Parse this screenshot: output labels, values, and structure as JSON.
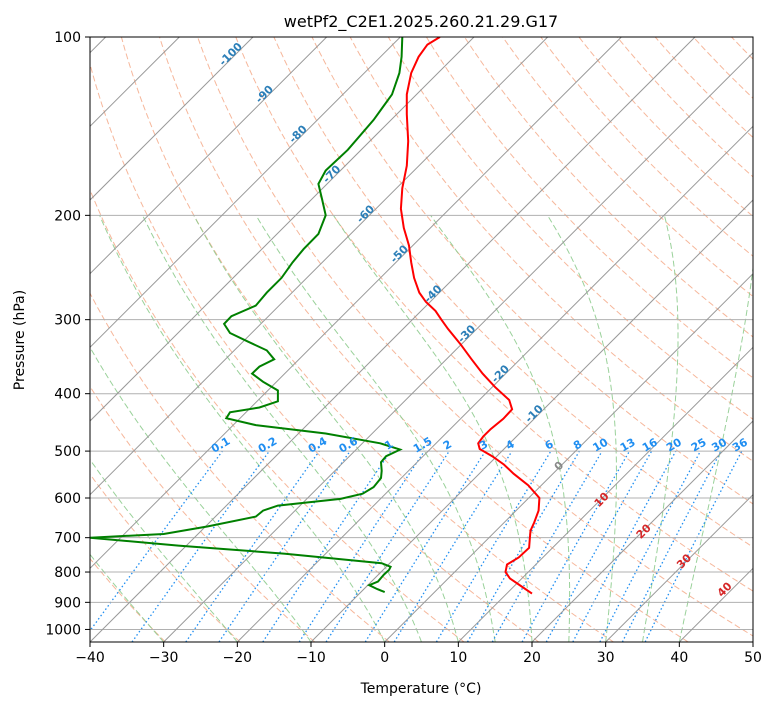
{
  "chart_data": {
    "type": "line",
    "title": "wetPf2_C2E1.2025.260.21.29.G17",
    "xlabel": "Temperature (°C)",
    "ylabel": "Pressure (hPa)",
    "xlim": [
      -40,
      50
    ],
    "ylim": [
      1050,
      100
    ],
    "y_scale": "log",
    "grid": true,
    "x_ticks": [
      "−40",
      "−30",
      "−20",
      "−10",
      "0",
      "10",
      "20",
      "30",
      "40",
      "50"
    ],
    "y_ticks": [
      {
        "p": 100,
        "label": "100"
      },
      {
        "p": 200,
        "label": "200"
      },
      {
        "p": 300,
        "label": "300"
      },
      {
        "p": 400,
        "label": "400"
      },
      {
        "p": 500,
        "label": "500"
      },
      {
        "p": 600,
        "label": "600"
      },
      {
        "p": 700,
        "label": "700"
      },
      {
        "p": 800,
        "label": "800"
      },
      {
        "p": 900,
        "label": "900"
      },
      {
        "p": 1000,
        "label": "1000"
      }
    ],
    "series": [
      {
        "color": "#ff0000",
        "points": [
          [
            20.0,
            870
          ],
          [
            18.4,
            843
          ],
          [
            17.0,
            820
          ],
          [
            16.4,
            800
          ],
          [
            16.6,
            777
          ],
          [
            18.2,
            756
          ],
          [
            19.6,
            728
          ],
          [
            19.7,
            703
          ],
          [
            19.8,
            681
          ],
          [
            20.3,
            660
          ],
          [
            20.9,
            630
          ],
          [
            21.0,
            600
          ],
          [
            19.5,
            571
          ],
          [
            17.5,
            546
          ],
          [
            16.2,
            527
          ],
          [
            14.6,
            510
          ],
          [
            12.9,
            496
          ],
          [
            12.7,
            485
          ],
          [
            13.4,
            472
          ],
          [
            14.4,
            459
          ],
          [
            16.1,
            441
          ],
          [
            17.3,
            425
          ],
          [
            16.9,
            410
          ],
          [
            15.0,
            390
          ],
          [
            13.3,
            370
          ],
          [
            11.8,
            350
          ],
          [
            10.3,
            330
          ],
          [
            8.6,
            311
          ],
          [
            7.7,
            300
          ],
          [
            6.9,
            290
          ],
          [
            5.6,
            280
          ],
          [
            4.7,
            270
          ],
          [
            4.0,
            255
          ],
          [
            3.6,
            240
          ],
          [
            3.3,
            225
          ],
          [
            2.6,
            210
          ],
          [
            2.2,
            195
          ],
          [
            2.4,
            180
          ],
          [
            3.0,
            165
          ],
          [
            3.2,
            150
          ],
          [
            3.0,
            135
          ],
          [
            3.0,
            125
          ],
          [
            3.6,
            115
          ],
          [
            4.6,
            108
          ],
          [
            5.8,
            103
          ],
          [
            7.5,
            100
          ]
        ]
      },
      {
        "color": "#008000",
        "points": [
          [
            0.0,
            865
          ],
          [
            -1.0,
            855
          ],
          [
            -2.1,
            842
          ],
          [
            -0.9,
            830
          ],
          [
            -0.1,
            808
          ],
          [
            0.6,
            793
          ],
          [
            0.8,
            784
          ],
          [
            -0.4,
            773
          ],
          [
            -13.5,
            745
          ],
          [
            -28.0,
            722
          ],
          [
            -40.0,
            700
          ],
          [
            -30.0,
            690
          ],
          [
            -24.0,
            670
          ],
          [
            -17.5,
            645
          ],
          [
            -16.5,
            630
          ],
          [
            -14.5,
            618
          ],
          [
            -6.0,
            602
          ],
          [
            -3.0,
            590
          ],
          [
            -1.5,
            575
          ],
          [
            -0.5,
            555
          ],
          [
            -0.4,
            540
          ],
          [
            -0.5,
            522
          ],
          [
            0.2,
            510
          ],
          [
            2.1,
            497
          ],
          [
            -0.6,
            485
          ],
          [
            -8.0,
            467
          ],
          [
            -17.5,
            452
          ],
          [
            -21.5,
            440
          ],
          [
            -21.0,
            430
          ],
          [
            -17.0,
            422
          ],
          [
            -14.5,
            412
          ],
          [
            -14.5,
            395
          ],
          [
            -16.5,
            382
          ],
          [
            -18.0,
            370
          ],
          [
            -17.0,
            360
          ],
          [
            -15.0,
            350
          ],
          [
            -16.0,
            338
          ],
          [
            -18.5,
            327
          ],
          [
            -21.0,
            316
          ],
          [
            -21.8,
            305
          ],
          [
            -20.8,
            296
          ],
          [
            -17.5,
            284
          ],
          [
            -16.0,
            270
          ],
          [
            -14.0,
            255
          ],
          [
            -12.5,
            240
          ],
          [
            -11.0,
            228
          ],
          [
            -9.0,
            215
          ],
          [
            -8.0,
            200
          ],
          [
            -8.5,
            188
          ],
          [
            -9.0,
            177
          ],
          [
            -8.0,
            168
          ],
          [
            -5.0,
            155
          ],
          [
            -1.5,
            138
          ],
          [
            1.0,
            125
          ],
          [
            2.0,
            115
          ],
          [
            2.3,
            108
          ],
          [
            2.4,
            100
          ]
        ]
      }
    ],
    "mixing_ratio_labels": [
      "0.1",
      "0.2",
      "0.4",
      "0.6",
      "1",
      "1.5",
      "2",
      "3",
      "4",
      "6",
      "8",
      "10",
      "13",
      "16",
      "20",
      "25",
      "30",
      "36"
    ],
    "isotherm_labels": [
      "-100",
      "-90",
      "-80",
      "-70",
      "-60",
      "-50",
      "-40",
      "-30",
      "-20",
      "-10"
    ],
    "moist_adiabat_labels": [
      "0",
      "10",
      "20",
      "30",
      "40"
    ],
    "colors": {
      "temperature": "#ff0000",
      "dewpoint": "#008000",
      "dry_adiabat": "#f4a582",
      "moist_adiabat": "#8fcc8f",
      "mixing_ratio": "#1f8ef1",
      "isotherm_label": "#2c7fb8",
      "moist_label": "#d62728",
      "skewed_isotherm": "#999999",
      "grid": "#b0b0b0"
    }
  }
}
